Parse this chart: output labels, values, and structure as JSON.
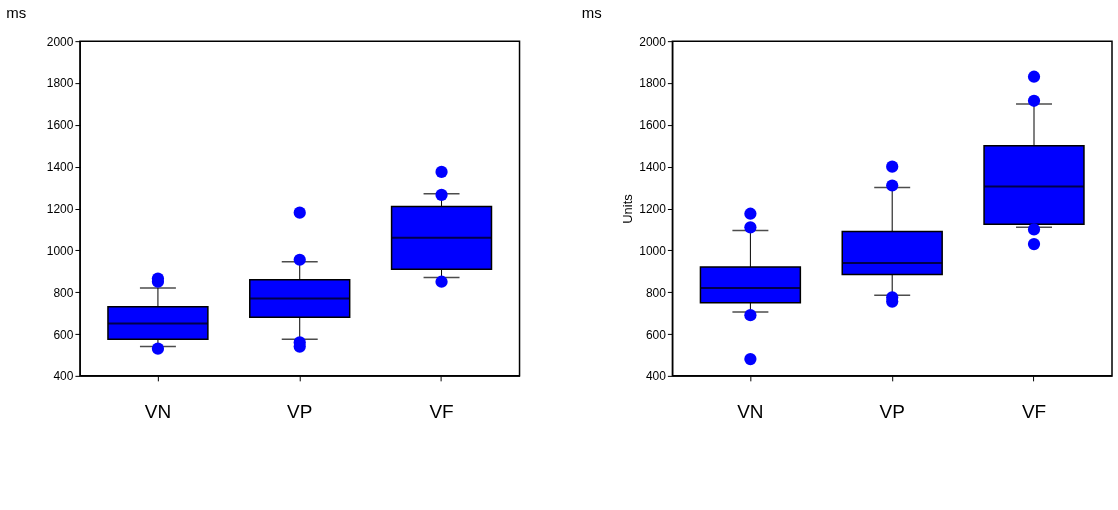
{
  "chart_data": [
    {
      "type": "box",
      "title": "ms",
      "categories": [
        "VN",
        "VP",
        "VF"
      ],
      "color": "#0000ff",
      "grid": false,
      "ylim": [
        400,
        2000
      ],
      "yticks": [
        400,
        600,
        800,
        1000,
        1200,
        1400,
        1600,
        1800,
        2000
      ],
      "boxes": [
        {
          "low": 540,
          "q1": 575,
          "median": 650,
          "q3": 730,
          "high": 820,
          "outliers": [
            530,
            850,
            865
          ]
        },
        {
          "low": 575,
          "q1": 680,
          "median": 770,
          "q3": 860,
          "high": 945,
          "outliers": [
            540,
            560,
            955,
            1180
          ]
        },
        {
          "low": 870,
          "q1": 910,
          "median": 1060,
          "q3": 1210,
          "high": 1270,
          "outliers": [
            850,
            1265,
            1375
          ]
        }
      ]
    },
    {
      "type": "box",
      "title": "ms",
      "ylabel": "Units",
      "categories": [
        "VN",
        "VP",
        "VF"
      ],
      "color": "#0000ff",
      "grid": false,
      "ylim": [
        400,
        2000
      ],
      "yticks": [
        400,
        600,
        800,
        1000,
        1200,
        1400,
        1600,
        1800,
        2000
      ],
      "boxes": [
        {
          "low": 705,
          "q1": 750,
          "median": 820,
          "q3": 920,
          "high": 1095,
          "outliers": [
            480,
            690,
            1110,
            1175
          ]
        },
        {
          "low": 785,
          "q1": 885,
          "median": 940,
          "q3": 1090,
          "high": 1300,
          "outliers": [
            755,
            775,
            1310,
            1400
          ]
        },
        {
          "low": 1110,
          "q1": 1125,
          "median": 1305,
          "q3": 1500,
          "high": 1700,
          "outliers": [
            1030,
            1100,
            1715,
            1830
          ]
        }
      ]
    }
  ]
}
